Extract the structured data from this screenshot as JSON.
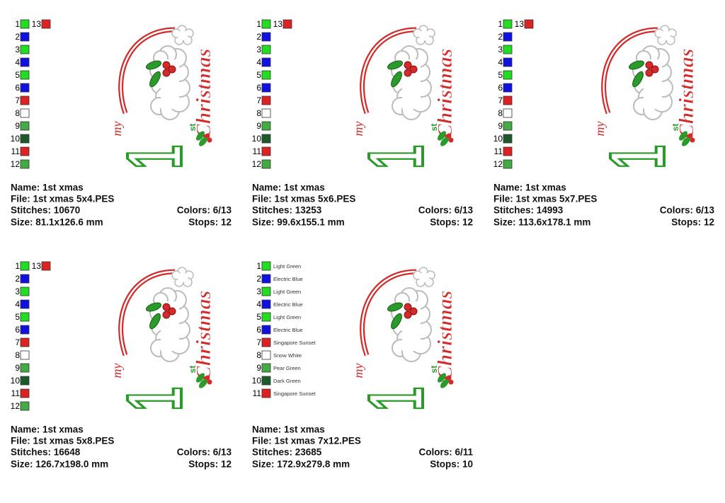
{
  "design": {
    "my": "my",
    "one": "1",
    "st": "st",
    "christmas": "Christmas"
  },
  "panels": [
    {
      "swatches": [
        {
          "number": 1,
          "color": "#22dd22"
        },
        {
          "number": 2,
          "color": "#1010e0"
        },
        {
          "number": 3,
          "color": "#22dd22"
        },
        {
          "number": 4,
          "color": "#1010e0"
        },
        {
          "number": 5,
          "color": "#22dd22"
        },
        {
          "number": 6,
          "color": "#1010e0"
        },
        {
          "number": 7,
          "color": "#dd2222"
        },
        {
          "number": 8,
          "color": "#ffffff"
        },
        {
          "number": 9,
          "color": "#44aa44"
        },
        {
          "number": 10,
          "color": "#1d5a2a"
        },
        {
          "number": 11,
          "color": "#dd2222"
        },
        {
          "number": 12,
          "color": "#44aa44"
        },
        {
          "number": 13,
          "color": "#dd2222"
        }
      ],
      "info": {
        "name": "Name: 1st xmas",
        "file": "File: 1st xmas 5x4.PES",
        "stitches": "Stitches: 10670",
        "colors": "Colors: 6/13",
        "size": "Size: 81.1x126.6 mm",
        "stops": "Stops: 12"
      }
    },
    {
      "swatches": [
        {
          "number": 1,
          "color": "#22dd22"
        },
        {
          "number": 2,
          "color": "#1010e0"
        },
        {
          "number": 3,
          "color": "#22dd22"
        },
        {
          "number": 4,
          "color": "#1010e0"
        },
        {
          "number": 5,
          "color": "#22dd22"
        },
        {
          "number": 6,
          "color": "#1010e0"
        },
        {
          "number": 7,
          "color": "#dd2222"
        },
        {
          "number": 8,
          "color": "#ffffff"
        },
        {
          "number": 9,
          "color": "#44aa44"
        },
        {
          "number": 10,
          "color": "#1d5a2a"
        },
        {
          "number": 11,
          "color": "#dd2222"
        },
        {
          "number": 12,
          "color": "#44aa44"
        },
        {
          "number": 13,
          "color": "#dd2222"
        }
      ],
      "info": {
        "name": "Name: 1st xmas",
        "file": "File: 1st xmas 5x6.PES",
        "stitches": "Stitches: 13253",
        "colors": "Colors: 6/13",
        "size": "Size: 99.6x155.1 mm",
        "stops": "Stops: 12"
      }
    },
    {
      "swatches": [
        {
          "number": 1,
          "color": "#22dd22"
        },
        {
          "number": 2,
          "color": "#1010e0"
        },
        {
          "number": 3,
          "color": "#22dd22"
        },
        {
          "number": 4,
          "color": "#1010e0"
        },
        {
          "number": 5,
          "color": "#22dd22"
        },
        {
          "number": 6,
          "color": "#1010e0"
        },
        {
          "number": 7,
          "color": "#dd2222"
        },
        {
          "number": 8,
          "color": "#ffffff"
        },
        {
          "number": 9,
          "color": "#44aa44"
        },
        {
          "number": 10,
          "color": "#1d5a2a"
        },
        {
          "number": 11,
          "color": "#dd2222"
        },
        {
          "number": 12,
          "color": "#44aa44"
        },
        {
          "number": 13,
          "color": "#dd2222"
        }
      ],
      "info": {
        "name": "Name: 1st xmas",
        "file": "File: 1st xmas 5x7.PES",
        "stitches": "Stitches: 14993",
        "colors": "Colors: 6/13",
        "size": "Size: 113.6x178.1 mm",
        "stops": "Stops: 12"
      }
    },
    {
      "swatches": [
        {
          "number": 1,
          "color": "#22dd22"
        },
        {
          "number": 2,
          "color": "#1010e0"
        },
        {
          "number": 3,
          "color": "#22dd22"
        },
        {
          "number": 4,
          "color": "#1010e0"
        },
        {
          "number": 5,
          "color": "#22dd22"
        },
        {
          "number": 6,
          "color": "#1010e0"
        },
        {
          "number": 7,
          "color": "#dd2222"
        },
        {
          "number": 8,
          "color": "#ffffff"
        },
        {
          "number": 9,
          "color": "#44aa44"
        },
        {
          "number": 10,
          "color": "#1d5a2a"
        },
        {
          "number": 11,
          "color": "#dd2222"
        },
        {
          "number": 12,
          "color": "#44aa44"
        },
        {
          "number": 13,
          "color": "#dd2222"
        }
      ],
      "info": {
        "name": "Name: 1st xmas",
        "file": "File: 1st xmas 5x8.PES",
        "stitches": "Stitches: 16648",
        "colors": "Colors: 6/13",
        "size": "Size: 126.7x198.0 mm",
        "stops": "Stops: 12"
      }
    },
    {
      "swatches": [
        {
          "number": 1,
          "color": "#22dd22",
          "label": "Light Green"
        },
        {
          "number": 2,
          "color": "#1010e0",
          "label": "Electric Blue"
        },
        {
          "number": 3,
          "color": "#22dd22",
          "label": "Light Green"
        },
        {
          "number": 4,
          "color": "#1010e0",
          "label": "Electric Blue"
        },
        {
          "number": 5,
          "color": "#22dd22",
          "label": "Light Green"
        },
        {
          "number": 6,
          "color": "#1010e0",
          "label": "Electric Blue"
        },
        {
          "number": 7,
          "color": "#dd2222",
          "label": "Singapore Sunset"
        },
        {
          "number": 8,
          "color": "#ffffff",
          "label": "Snow White"
        },
        {
          "number": 9,
          "color": "#44aa44",
          "label": "Pear Green"
        },
        {
          "number": 10,
          "color": "#1d5a2a",
          "label": "Dark Green"
        },
        {
          "number": 11,
          "color": "#dd2222",
          "label": "Singapore Sunset"
        }
      ],
      "info": {
        "name": "Name: 1st xmas",
        "file": "File: 1st xmas 7x12.PES",
        "stitches": "Stitches: 23685",
        "colors": "Colors: 6/11",
        "size": "Size: 172.9x279.8 mm",
        "stops": "Stops: 10"
      }
    }
  ]
}
